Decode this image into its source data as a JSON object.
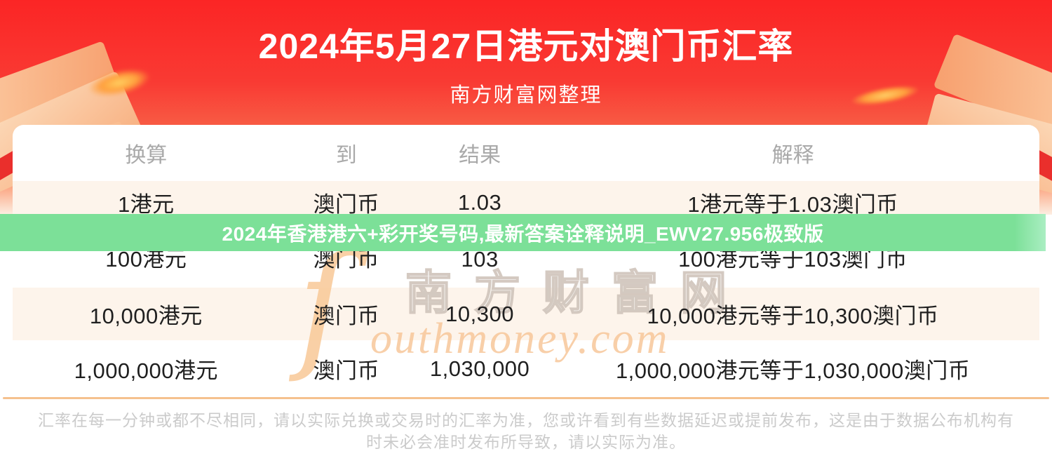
{
  "hero": {
    "title": "2024年5月27日港元对澳门币汇率",
    "subtitle": "南方财富网整理"
  },
  "promo_banner": {
    "text": "2024年香港港六+彩开奖号码,最新答案诠释说明_EWV27.956极致版"
  },
  "table": {
    "headers": [
      "换算",
      "到",
      "结果",
      "解释"
    ],
    "rows": [
      {
        "from": "1港元",
        "to": "澳门币",
        "result": "1.03",
        "explain": "1港元等于1.03澳门币"
      },
      {
        "from": "100港元",
        "to": "澳门币",
        "result": "103",
        "explain": "100港元等于103澳门币"
      },
      {
        "from": "10,000港元",
        "to": "澳门币",
        "result": "10,300",
        "explain": "10,000港元等于10,300澳门币"
      },
      {
        "from": "1,000,000港元",
        "to": "澳门币",
        "result": "1,030,000",
        "explain": "1,000,000港元等于1,030,000澳门币"
      }
    ]
  },
  "watermark": {
    "initial": "ſ",
    "cjk": "南方财富网",
    "latin": "outhmoney.com"
  },
  "footer": {
    "disclaimer": "汇率在每一分钟或都不尽相同，请以实际兑换或交易时的汇率为准，您或许看到有些数据延迟或提前发布，这是由于数据公布机构有时未必会准时发布所导致，请以实际为准。"
  },
  "colors": {
    "hero_red_top": "#fb2525",
    "hero_red_bottom": "#fdeee2",
    "promo_green": "#7ce098",
    "row_cream": "#fdf4eb",
    "divider_orange": "#f5c18e",
    "cell_text": "#1f1f1f",
    "header_text": "#a9a9a9",
    "footer_text": "#cbcbcb",
    "ribbon_red": "#ea2f2c"
  }
}
